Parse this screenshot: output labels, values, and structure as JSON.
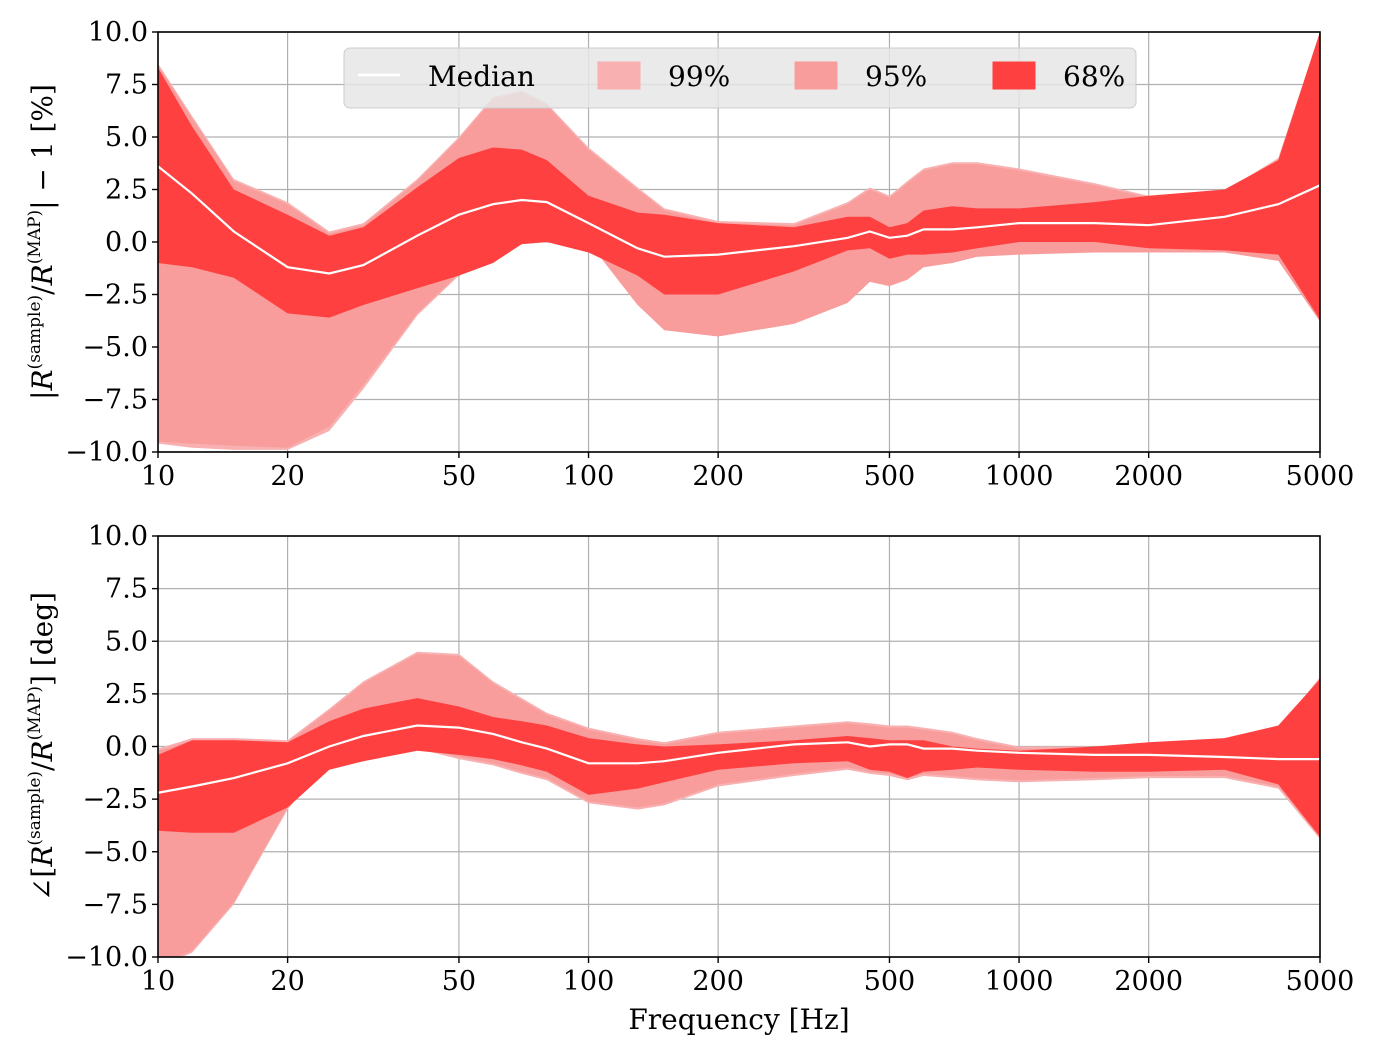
{
  "chart_data": [
    {
      "type": "area",
      "ylabel": "|R^(sample)/R^(MAP)| − 1 [%]",
      "ylabel_parts": {
        "bar_open": "|",
        "R": "R",
        "sup_sample": "(sample)",
        "slash": "/",
        "sup_map": "(MAP)",
        "tail": "| − 1 [%]"
      },
      "xlabel": "",
      "xscale": "log",
      "xlim": [
        10,
        5000
      ],
      "ylim": [
        -10,
        10
      ],
      "grid": true,
      "xticks": [
        10,
        20,
        50,
        100,
        200,
        500,
        1000,
        2000,
        5000
      ],
      "xtick_labels": [
        "10",
        "20",
        "50",
        "100",
        "200",
        "500",
        "1000",
        "2000",
        "5000"
      ],
      "yticks": [
        -10,
        -7.5,
        -5,
        -2.5,
        0,
        2.5,
        5,
        7.5,
        10
      ],
      "ytick_labels": [
        "−10.0",
        "−7.5",
        "−5.0",
        "−2.5",
        "0.0",
        "2.5",
        "5.0",
        "7.5",
        "10.0"
      ],
      "legend": {
        "placement": "top-center",
        "entries": [
          "Median",
          "99%",
          "95%",
          "68%"
        ]
      },
      "x": [
        10,
        12,
        15,
        20,
        25,
        30,
        40,
        50,
        60,
        70,
        80,
        100,
        130,
        150,
        200,
        300,
        400,
        450,
        500,
        550,
        600,
        700,
        800,
        1000,
        1500,
        2000,
        3000,
        4000,
        5000
      ],
      "series": [
        {
          "name": "99%",
          "color": "#f8b0b0",
          "lower": [
            -9.6,
            -9.8,
            -9.9,
            -9.9,
            -9.0,
            -7.0,
            -3.5,
            -1.6,
            -0.8,
            -0.1,
            0.0,
            0.0,
            0.0,
            0.0,
            0.0,
            0.0,
            0.0,
            0.0,
            0.0,
            0.0,
            0.0,
            0.0,
            0.0,
            0.0,
            0.0,
            0.0,
            0.0,
            0.0,
            0.0
          ],
          "upper": [
            8.5,
            6.0,
            3.0,
            1.9,
            0.5,
            0.9,
            3.0,
            5.0,
            6.9,
            7.2,
            6.6,
            4.5,
            2.6,
            1.6,
            1.0,
            0.9,
            1.9,
            2.6,
            2.2,
            2.9,
            3.5,
            3.8,
            3.8,
            3.5,
            2.8,
            2.2,
            2.4,
            4.0,
            10.0
          ]
        },
        {
          "name": "95%",
          "color": "#f89c9c",
          "lower": [
            -9.5,
            -9.6,
            -9.7,
            -9.8,
            -8.8,
            -6.8,
            -3.4,
            -1.5,
            -0.7,
            -0.1,
            0.0,
            0.0,
            -3.0,
            -4.2,
            -4.5,
            -3.9,
            -2.9,
            -1.9,
            -2.1,
            -1.8,
            -1.2,
            -1.0,
            -0.7,
            -0.6,
            -0.5,
            -0.5,
            -0.5,
            -0.9,
            -3.8
          ],
          "upper": [
            8.4,
            5.9,
            2.9,
            1.8,
            0.4,
            0.8,
            2.9,
            4.9,
            6.8,
            7.1,
            6.5,
            4.4,
            2.5,
            1.5,
            0.9,
            0.8,
            1.8,
            2.5,
            2.1,
            2.8,
            3.4,
            3.7,
            3.7,
            3.4,
            2.7,
            2.1,
            2.3,
            3.9,
            10.0
          ]
        },
        {
          "name": "68%",
          "color": "#ff4040",
          "lower": [
            -1.0,
            -1.2,
            -1.7,
            -3.4,
            -3.6,
            -3.0,
            -2.2,
            -1.6,
            -1.0,
            -0.1,
            0.0,
            -0.5,
            -1.6,
            -2.5,
            -2.5,
            -1.4,
            -0.4,
            -0.3,
            -0.8,
            -0.6,
            -0.6,
            -0.5,
            -0.3,
            0.0,
            0.0,
            -0.3,
            -0.4,
            -0.6,
            -3.7
          ],
          "upper": [
            8.3,
            5.5,
            2.5,
            1.3,
            0.3,
            0.7,
            2.6,
            4.0,
            4.5,
            4.4,
            3.9,
            2.2,
            1.4,
            1.3,
            0.9,
            0.7,
            1.2,
            1.2,
            0.7,
            0.9,
            1.5,
            1.7,
            1.6,
            1.6,
            1.9,
            2.2,
            2.5,
            3.9,
            10.0
          ]
        },
        {
          "name": "Median",
          "color": "#ffffff",
          "values": [
            3.6,
            2.3,
            0.5,
            -1.2,
            -1.5,
            -1.1,
            0.3,
            1.3,
            1.8,
            2.0,
            1.9,
            0.9,
            -0.3,
            -0.7,
            -0.6,
            -0.2,
            0.2,
            0.5,
            0.2,
            0.3,
            0.6,
            0.6,
            0.7,
            0.9,
            0.9,
            0.8,
            1.2,
            1.8,
            2.7
          ]
        }
      ]
    },
    {
      "type": "area",
      "ylabel": "∠[R^(sample)/R^(MAP)] [deg]",
      "ylabel_parts": {
        "bar_open": "∠[",
        "R": "R",
        "sup_sample": "(sample)",
        "slash": "/",
        "sup_map": "(MAP)",
        "tail": "] [deg]"
      },
      "xlabel": "Frequency [Hz]",
      "xscale": "log",
      "xlim": [
        10,
        5000
      ],
      "ylim": [
        -10,
        10
      ],
      "grid": true,
      "xticks": [
        10,
        20,
        50,
        100,
        200,
        500,
        1000,
        2000,
        5000
      ],
      "xtick_labels": [
        "10",
        "20",
        "50",
        "100",
        "200",
        "500",
        "1000",
        "2000",
        "5000"
      ],
      "yticks": [
        -10,
        -7.5,
        -5,
        -2.5,
        0,
        2.5,
        5,
        7.5,
        10
      ],
      "ytick_labels": [
        "−10.0",
        "−7.5",
        "−5.0",
        "−2.5",
        "0.0",
        "2.5",
        "5.0",
        "7.5",
        "10.0"
      ],
      "x": [
        10,
        12,
        15,
        20,
        25,
        30,
        40,
        50,
        60,
        70,
        80,
        100,
        130,
        150,
        200,
        300,
        400,
        450,
        500,
        550,
        600,
        700,
        800,
        1000,
        1500,
        2000,
        3000,
        4000,
        5000
      ],
      "series": [
        {
          "name": "99%",
          "color": "#f8b0b0",
          "lower": [
            -10.5,
            -9.8,
            -7.5,
            -3.0,
            -0.6,
            -0.3,
            -0.1,
            -0.6,
            -0.9,
            -1.3,
            -1.6,
            -2.7,
            -3.0,
            -2.8,
            -1.9,
            -1.4,
            -1.1,
            -1.3,
            -1.4,
            -1.6,
            -1.4,
            -1.5,
            -1.6,
            -1.7,
            -1.6,
            -1.5,
            -1.5,
            -2.0,
            -4.4
          ],
          "upper": [
            -0.1,
            0.4,
            0.4,
            0.3,
            1.8,
            3.1,
            4.5,
            4.4,
            3.1,
            2.3,
            1.6,
            0.9,
            0.4,
            0.2,
            0.7,
            1.0,
            1.2,
            1.1,
            1.0,
            1.0,
            0.9,
            0.7,
            0.4,
            0.0,
            0.0,
            0.0,
            0.2,
            0.8,
            3.3
          ]
        },
        {
          "name": "95%",
          "color": "#f89c9c",
          "lower": [
            -10.4,
            -9.7,
            -7.4,
            -2.9,
            -0.5,
            -0.2,
            0.0,
            -0.5,
            -0.8,
            -1.2,
            -1.5,
            -2.6,
            -2.9,
            -2.7,
            -1.8,
            -1.3,
            -1.0,
            -1.2,
            -1.3,
            -1.5,
            -1.3,
            -1.4,
            -1.5,
            -1.6,
            -1.5,
            -1.4,
            -1.4,
            -1.9,
            -4.3
          ],
          "upper": [
            -0.2,
            0.3,
            0.3,
            0.2,
            1.7,
            3.0,
            4.4,
            4.3,
            3.0,
            2.2,
            1.5,
            0.8,
            0.3,
            0.1,
            0.6,
            0.9,
            1.1,
            1.0,
            0.9,
            0.9,
            0.8,
            0.6,
            0.3,
            -0.1,
            -0.1,
            -0.1,
            0.1,
            0.7,
            3.2
          ]
        },
        {
          "name": "68%",
          "color": "#ff4040",
          "lower": [
            -4.0,
            -4.1,
            -4.1,
            -2.9,
            -1.1,
            -0.7,
            -0.2,
            -0.4,
            -0.6,
            -0.9,
            -1.2,
            -2.3,
            -2.0,
            -1.7,
            -1.1,
            -0.8,
            -0.7,
            -1.1,
            -1.2,
            -1.5,
            -1.2,
            -1.1,
            -1.0,
            -1.1,
            -1.2,
            -1.2,
            -1.1,
            -1.8,
            -4.3
          ],
          "upper": [
            -0.4,
            0.3,
            0.3,
            0.2,
            1.2,
            1.8,
            2.3,
            1.9,
            1.4,
            1.2,
            1.0,
            0.4,
            0.1,
            0.0,
            0.1,
            0.3,
            0.5,
            0.4,
            0.3,
            0.3,
            0.3,
            0.0,
            -0.1,
            -0.2,
            0.0,
            0.2,
            0.4,
            1.0,
            3.2
          ]
        },
        {
          "name": "Median",
          "color": "#ffffff",
          "values": [
            -2.2,
            -1.9,
            -1.5,
            -0.8,
            0.0,
            0.5,
            1.0,
            0.9,
            0.6,
            0.2,
            -0.1,
            -0.8,
            -0.8,
            -0.7,
            -0.3,
            0.1,
            0.2,
            0.0,
            0.1,
            0.1,
            -0.1,
            -0.1,
            -0.2,
            -0.3,
            -0.4,
            -0.4,
            -0.5,
            -0.6,
            -0.6
          ]
        }
      ]
    }
  ]
}
